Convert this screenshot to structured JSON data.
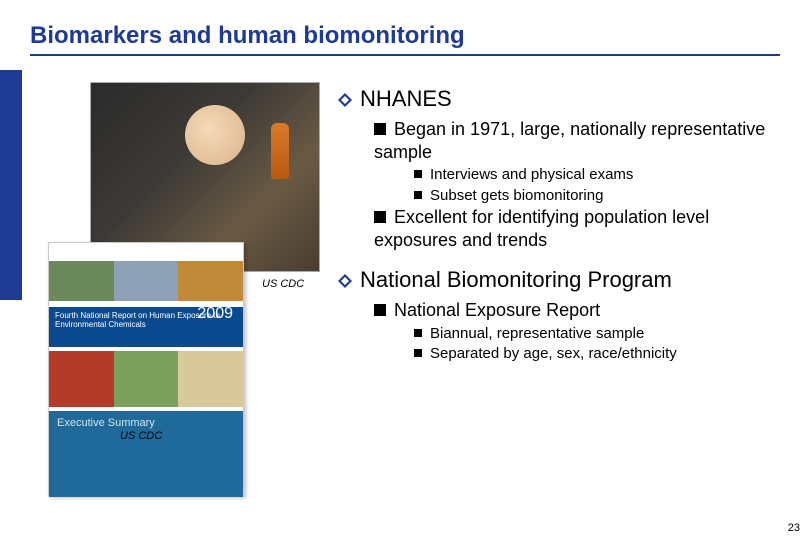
{
  "title": "Biomarkers and human biomonitoring",
  "caption1": "US CDC",
  "caption2": "US CDC",
  "report": {
    "band_text": "Fourth National Report on Human Exposure to Environmental Chemicals",
    "year": "2009",
    "summary": "Executive Summary"
  },
  "bullets": {
    "h1a": "NHANES",
    "h1a_s1": "Began in 1971, large, nationally representative sample",
    "h1a_s1_a": "Interviews and physical exams",
    "h1a_s1_b": "Subset gets biomonitoring",
    "h1a_s2": "Excellent for identifying population level exposures and trends",
    "h1b": "National Biomonitoring Program",
    "h1b_s1": "National Exposure Report",
    "h1b_s1_a": "Biannual, representative sample",
    "h1b_s1_b": "Separated by age, sex, race/ethnicity"
  },
  "slide_number": "23",
  "colors": {
    "accent": "#1f3a93",
    "text": "#000000",
    "background": "#ffffff"
  }
}
